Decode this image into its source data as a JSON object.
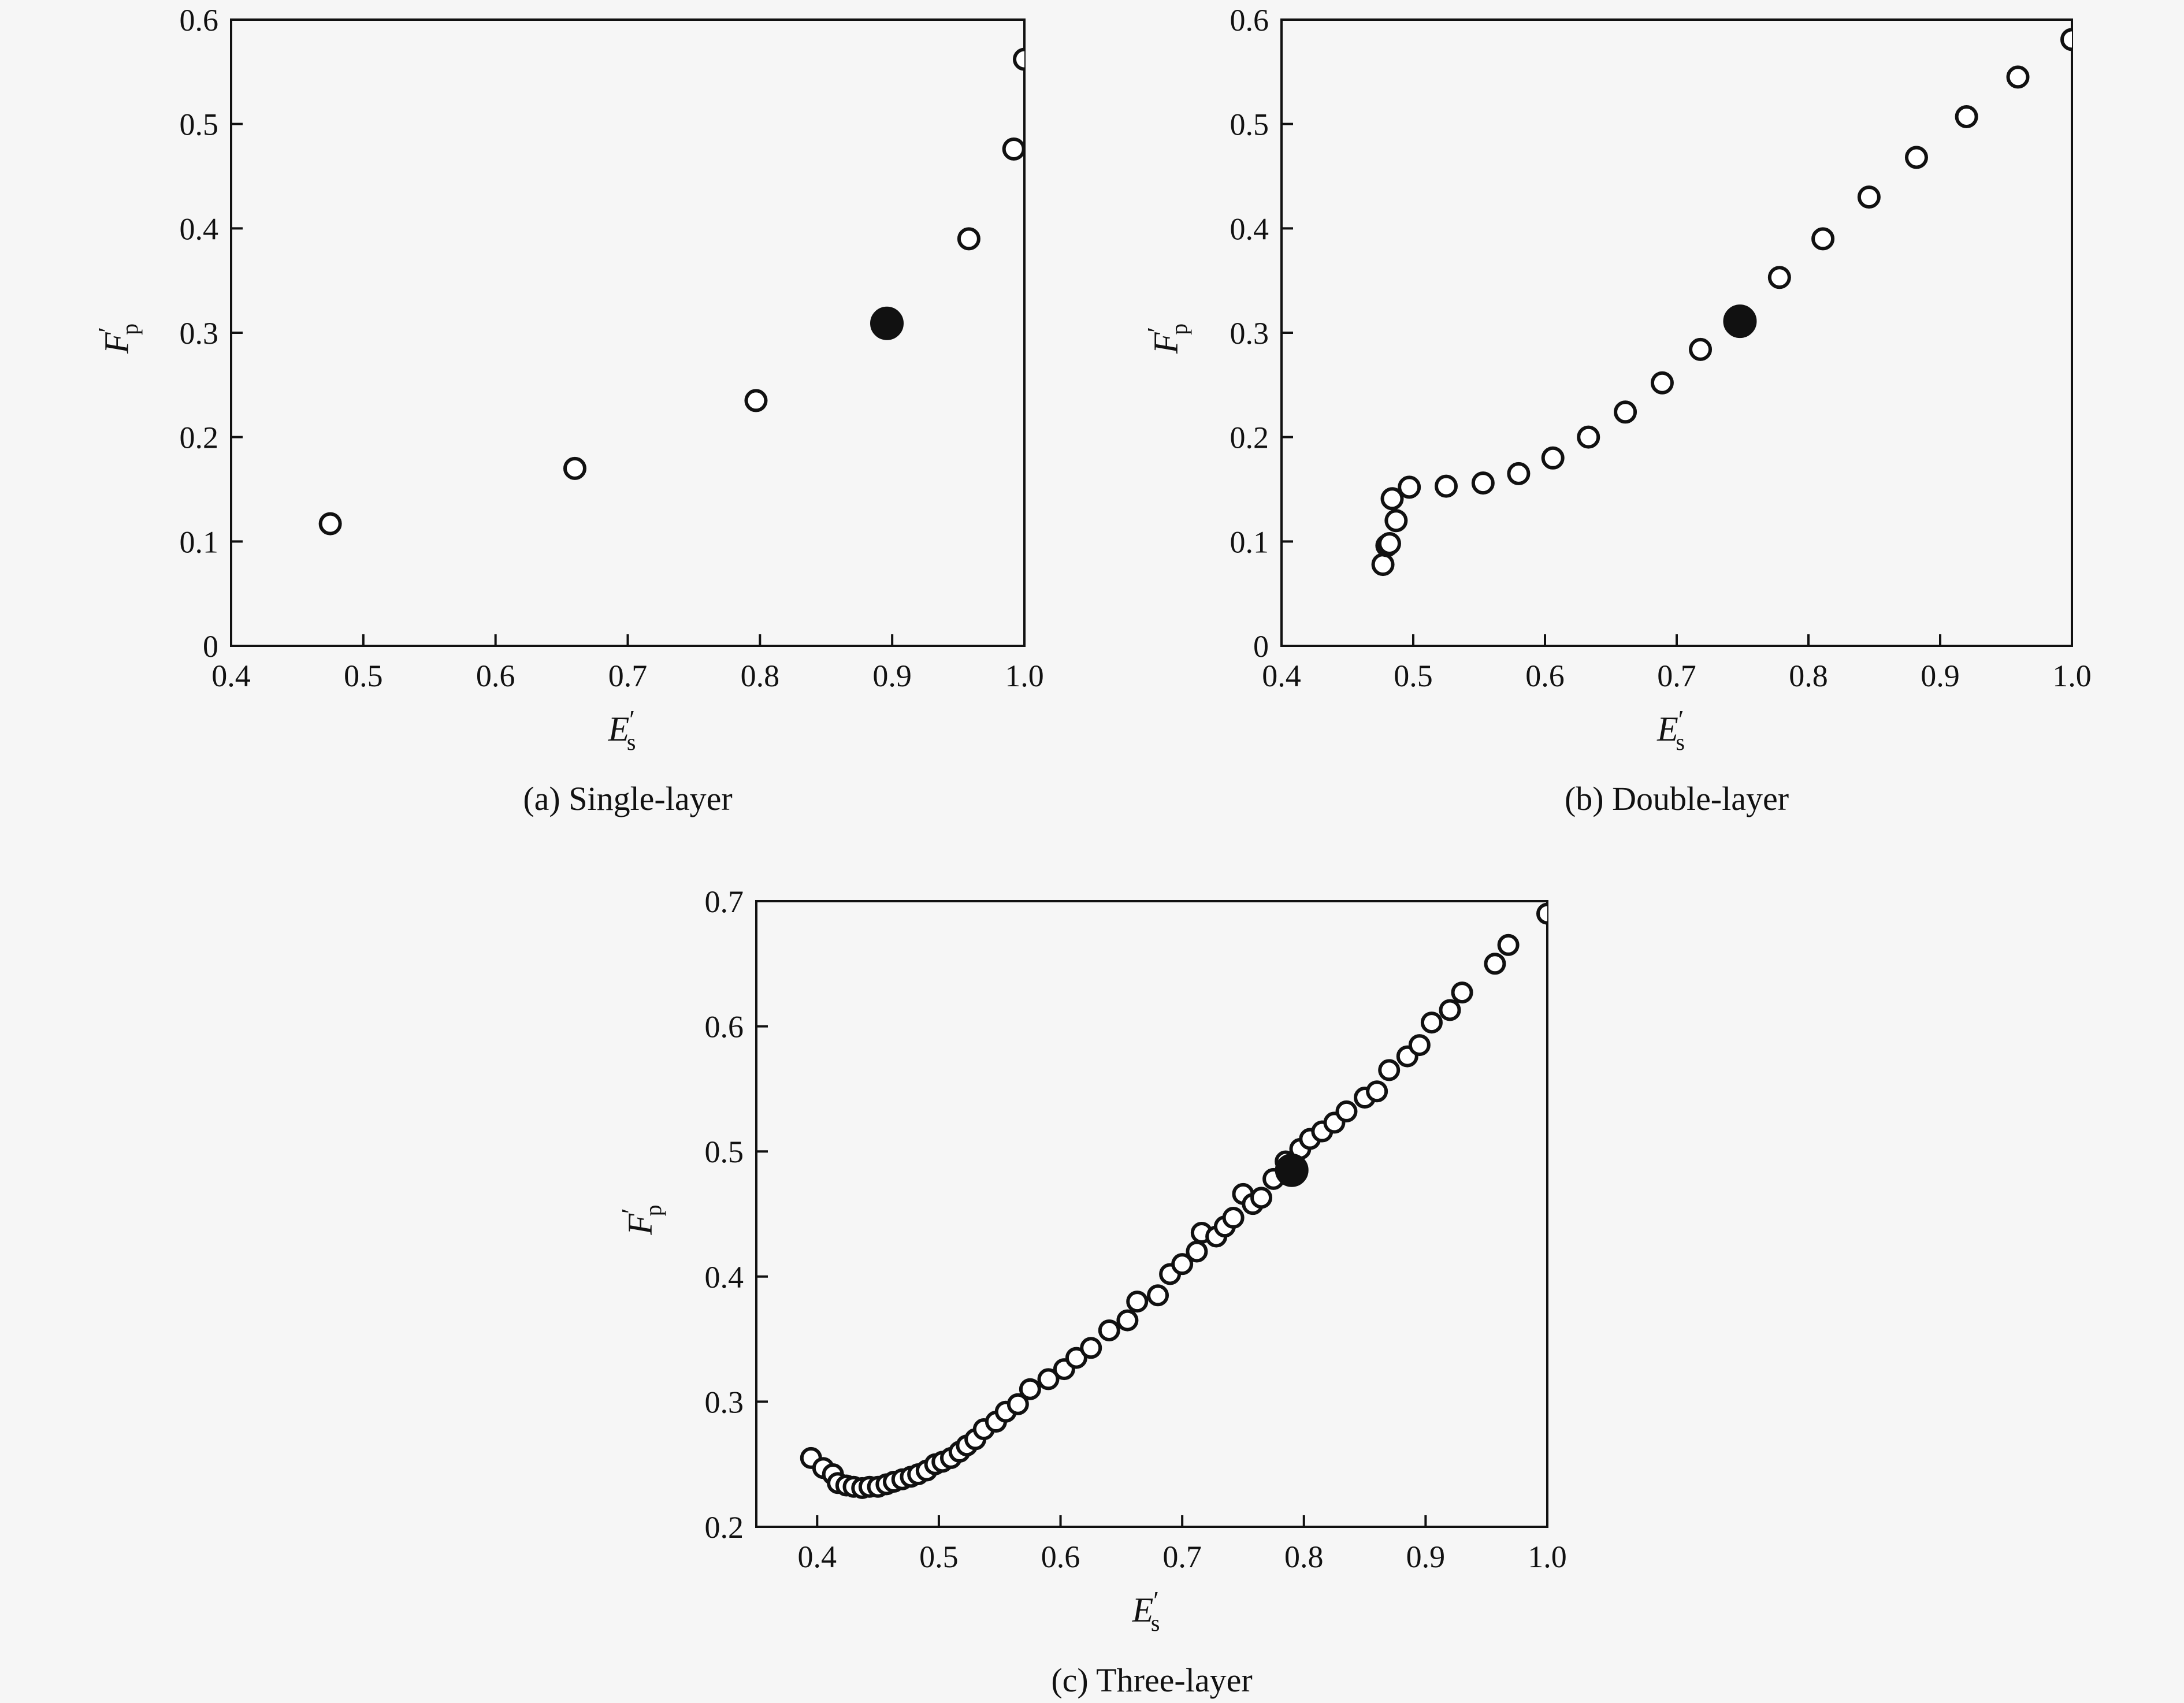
{
  "figure": {
    "captions": [
      "(a) Single-layer",
      "(b) Double-layer",
      "(c) Three-layer"
    ]
  },
  "chart_data": [
    {
      "type": "scatter",
      "panel": "a",
      "caption": "(a) Single-layer",
      "xlabel": {
        "symbol": "E",
        "prime": "′",
        "subscript": "s"
      },
      "ylabel": {
        "symbol": "F",
        "prime": "′",
        "subscript": "p"
      },
      "xlim": [
        0.4,
        1.0
      ],
      "ylim": [
        0,
        0.6
      ],
      "xticks": [
        "0.4",
        "0.5",
        "0.6",
        "0.7",
        "0.8",
        "0.9",
        "1.0"
      ],
      "yticks": [
        "0",
        "0.1",
        "0.2",
        "0.3",
        "0.4",
        "0.5",
        "0.6"
      ],
      "grid": false,
      "series": [
        {
          "marker": "open-circle",
          "points": [
            [
              0.475,
              0.117
            ],
            [
              0.66,
              0.17
            ],
            [
              0.797,
              0.235
            ],
            [
              0.958,
              0.39
            ],
            [
              0.992,
              0.476
            ],
            [
              1.0,
              0.562
            ]
          ]
        },
        {
          "marker": "filled-circle",
          "points": [
            [
              0.896,
              0.309
            ]
          ]
        }
      ]
    },
    {
      "type": "scatter",
      "panel": "b",
      "caption": "(b) Double-layer",
      "xlabel": {
        "symbol": "E",
        "prime": "′",
        "subscript": "s"
      },
      "ylabel": {
        "symbol": "F",
        "prime": "′",
        "subscript": "p"
      },
      "xlim": [
        0.4,
        1.0
      ],
      "ylim": [
        0,
        0.6
      ],
      "xticks": [
        "0.4",
        "0.5",
        "0.6",
        "0.7",
        "0.8",
        "0.9",
        "1.0"
      ],
      "yticks": [
        "0",
        "0.1",
        "0.2",
        "0.3",
        "0.4",
        "0.5",
        "0.6"
      ],
      "grid": false,
      "series": [
        {
          "marker": "open-circle",
          "points": [
            [
              0.477,
              0.078
            ],
            [
              0.48,
              0.096
            ],
            [
              0.482,
              0.098
            ],
            [
              0.487,
              0.12
            ],
            [
              0.484,
              0.141
            ],
            [
              0.497,
              0.152
            ],
            [
              0.525,
              0.153
            ],
            [
              0.553,
              0.156
            ],
            [
              0.58,
              0.165
            ],
            [
              0.606,
              0.18
            ],
            [
              0.633,
              0.2
            ],
            [
              0.661,
              0.224
            ],
            [
              0.689,
              0.252
            ],
            [
              0.718,
              0.284
            ],
            [
              0.778,
              0.353
            ],
            [
              0.811,
              0.39
            ],
            [
              0.846,
              0.43
            ],
            [
              0.882,
              0.468
            ],
            [
              0.92,
              0.507
            ],
            [
              0.959,
              0.545
            ],
            [
              1.0,
              0.581
            ]
          ]
        },
        {
          "marker": "filled-circle",
          "points": [
            [
              0.748,
              0.311
            ]
          ]
        }
      ]
    },
    {
      "type": "scatter",
      "panel": "c",
      "caption": "(c) Three-layer",
      "xlabel": {
        "symbol": "E",
        "prime": "′",
        "subscript": "s"
      },
      "ylabel": {
        "symbol": "F",
        "prime": "′",
        "subscript": "p"
      },
      "xlim": [
        0.35,
        1.0
      ],
      "ylim": [
        0.2,
        0.7
      ],
      "xticks": [
        "0.4",
        "0.5",
        "0.6",
        "0.7",
        "0.8",
        "0.9",
        "1.0"
      ],
      "yticks": [
        "0.2",
        "0.3",
        "0.4",
        "0.5",
        "0.6",
        "0.7"
      ],
      "grid": false,
      "series": [
        {
          "marker": "open-circle",
          "points": [
            [
              0.395,
              0.255
            ],
            [
              0.405,
              0.247
            ],
            [
              0.413,
              0.242
            ],
            [
              0.417,
              0.235
            ],
            [
              0.424,
              0.233
            ],
            [
              0.43,
              0.232
            ],
            [
              0.437,
              0.231
            ],
            [
              0.443,
              0.232
            ],
            [
              0.45,
              0.232
            ],
            [
              0.457,
              0.234
            ],
            [
              0.463,
              0.236
            ],
            [
              0.47,
              0.238
            ],
            [
              0.477,
              0.24
            ],
            [
              0.483,
              0.242
            ],
            [
              0.49,
              0.245
            ],
            [
              0.497,
              0.25
            ],
            [
              0.503,
              0.252
            ],
            [
              0.51,
              0.255
            ],
            [
              0.517,
              0.26
            ],
            [
              0.523,
              0.265
            ],
            [
              0.53,
              0.27
            ],
            [
              0.537,
              0.278
            ],
            [
              0.547,
              0.284
            ],
            [
              0.555,
              0.292
            ],
            [
              0.565,
              0.298
            ],
            [
              0.575,
              0.31
            ],
            [
              0.59,
              0.318
            ],
            [
              0.603,
              0.326
            ],
            [
              0.613,
              0.335
            ],
            [
              0.625,
              0.343
            ],
            [
              0.64,
              0.357
            ],
            [
              0.655,
              0.365
            ],
            [
              0.663,
              0.38
            ],
            [
              0.68,
              0.385
            ],
            [
              0.69,
              0.402
            ],
            [
              0.7,
              0.41
            ],
            [
              0.712,
              0.42
            ],
            [
              0.716,
              0.435
            ],
            [
              0.728,
              0.432
            ],
            [
              0.735,
              0.44
            ],
            [
              0.742,
              0.447
            ],
            [
              0.75,
              0.466
            ],
            [
              0.758,
              0.458
            ],
            [
              0.765,
              0.463
            ],
            [
              0.775,
              0.478
            ],
            [
              0.785,
              0.492
            ],
            [
              0.797,
              0.502
            ],
            [
              0.805,
              0.51
            ],
            [
              0.815,
              0.516
            ],
            [
              0.825,
              0.523
            ],
            [
              0.835,
              0.532
            ],
            [
              0.85,
              0.543
            ],
            [
              0.86,
              0.548
            ],
            [
              0.87,
              0.565
            ],
            [
              0.885,
              0.576
            ],
            [
              0.895,
              0.585
            ],
            [
              0.905,
              0.603
            ],
            [
              0.92,
              0.613
            ],
            [
              0.93,
              0.627
            ],
            [
              0.957,
              0.65
            ],
            [
              0.968,
              0.665
            ],
            [
              1.0,
              0.69
            ]
          ]
        },
        {
          "marker": "filled-circle",
          "points": [
            [
              0.79,
              0.485
            ]
          ]
        }
      ]
    }
  ]
}
